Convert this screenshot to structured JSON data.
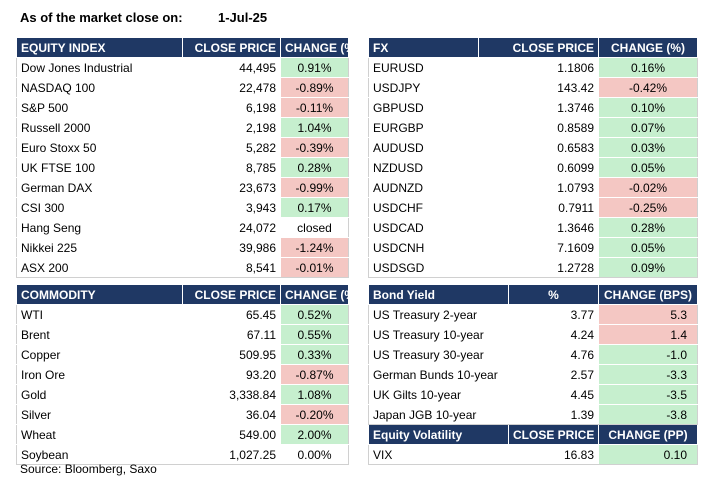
{
  "header": {
    "label": "As of the market close on:",
    "date": "1-Jul-25"
  },
  "equity": {
    "headers": [
      "EQUITY INDEX",
      "CLOSE PRICE",
      "CHANGE (%)"
    ],
    "rows": [
      {
        "name": "Dow Jones Industrial",
        "price": "44,495",
        "change": "0.91%",
        "dir": "pos"
      },
      {
        "name": "NASDAQ 100",
        "price": "22,478",
        "change": "-0.89%",
        "dir": "neg"
      },
      {
        "name": "S&P 500",
        "price": "6,198",
        "change": "-0.11%",
        "dir": "neg"
      },
      {
        "name": "Russell 2000",
        "price": "2,198",
        "change": "1.04%",
        "dir": "pos"
      },
      {
        "name": "Euro Stoxx 50",
        "price": "5,282",
        "change": "-0.39%",
        "dir": "neg"
      },
      {
        "name": "UK FTSE 100",
        "price": "8,785",
        "change": "0.28%",
        "dir": "pos"
      },
      {
        "name": "German DAX",
        "price": "23,673",
        "change": "-0.99%",
        "dir": "neg"
      },
      {
        "name": "CSI 300",
        "price": "3,943",
        "change": "0.17%",
        "dir": "pos"
      },
      {
        "name": "Hang Seng",
        "price": "24,072",
        "change": "closed",
        "dir": "neu"
      },
      {
        "name": "Nikkei 225",
        "price": "39,986",
        "change": "-1.24%",
        "dir": "neg"
      },
      {
        "name": "ASX 200",
        "price": "8,541",
        "change": "-0.01%",
        "dir": "neg"
      }
    ]
  },
  "fx": {
    "headers": [
      "FX",
      "CLOSE PRICE",
      "CHANGE (%)"
    ],
    "rows": [
      {
        "name": "EURUSD",
        "price": "1.1806",
        "change": "0.16%",
        "dir": "pos"
      },
      {
        "name": "USDJPY",
        "price": "143.42",
        "change": "-0.42%",
        "dir": "neg"
      },
      {
        "name": "GBPUSD",
        "price": "1.3746",
        "change": "0.10%",
        "dir": "pos"
      },
      {
        "name": "EURGBP",
        "price": "0.8589",
        "change": "0.07%",
        "dir": "pos"
      },
      {
        "name": "AUDUSD",
        "price": "0.6583",
        "change": "0.03%",
        "dir": "pos"
      },
      {
        "name": "NZDUSD",
        "price": "0.6099",
        "change": "0.05%",
        "dir": "pos"
      },
      {
        "name": "AUDNZD",
        "price": "1.0793",
        "change": "-0.02%",
        "dir": "neg"
      },
      {
        "name": "USDCHF",
        "price": "0.7911",
        "change": "-0.25%",
        "dir": "neg"
      },
      {
        "name": "USDCAD",
        "price": "1.3646",
        "change": "0.28%",
        "dir": "pos"
      },
      {
        "name": "USDCNH",
        "price": "7.1609",
        "change": "0.05%",
        "dir": "pos"
      },
      {
        "name": "USDSGD",
        "price": "1.2728",
        "change": "0.09%",
        "dir": "pos"
      }
    ]
  },
  "commodity": {
    "headers": [
      "COMMODITY",
      "CLOSE PRICE",
      "CHANGE (%)"
    ],
    "rows": [
      {
        "name": "WTI",
        "price": "65.45",
        "change": "0.52%",
        "dir": "pos"
      },
      {
        "name": "Brent",
        "price": "67.11",
        "change": "0.55%",
        "dir": "pos"
      },
      {
        "name": "Copper",
        "price": "509.95",
        "change": "0.33%",
        "dir": "pos"
      },
      {
        "name": "Iron Ore",
        "price": "93.20",
        "change": "-0.87%",
        "dir": "neg"
      },
      {
        "name": "Gold",
        "price": "3,338.84",
        "change": "1.08%",
        "dir": "pos"
      },
      {
        "name": "Silver",
        "price": "36.04",
        "change": "-0.20%",
        "dir": "neg"
      },
      {
        "name": "Wheat",
        "price": "549.00",
        "change": "2.00%",
        "dir": "pos"
      },
      {
        "name": "Soybean",
        "price": "1,027.25",
        "change": "0.00%",
        "dir": "neu"
      }
    ]
  },
  "bonds": {
    "headers": [
      "Bond Yield",
      "%",
      "CHANGE (BPS)"
    ],
    "rows": [
      {
        "name": "US Treasury 2-year",
        "price": "3.77",
        "change": "5.3",
        "dir": "neg"
      },
      {
        "name": "US Treasury 10-year",
        "price": "4.24",
        "change": "1.4",
        "dir": "neg"
      },
      {
        "name": "US Treasury 30-year",
        "price": "4.76",
        "change": "-1.0",
        "dir": "pos"
      },
      {
        "name": "German Bunds 10-year",
        "price": "2.57",
        "change": "-3.3",
        "dir": "pos"
      },
      {
        "name": "UK Gilts 10-year",
        "price": "4.45",
        "change": "-3.5",
        "dir": "pos"
      },
      {
        "name": "Japan JGB 10-year",
        "price": "1.39",
        "change": "-3.8",
        "dir": "pos"
      }
    ]
  },
  "volatility": {
    "headers": [
      "Equity Volatility",
      "CLOSE PRICE",
      "CHANGE (PP)"
    ],
    "rows": [
      {
        "name": "VIX",
        "price": "16.83",
        "change": "0.10",
        "dir": "pos"
      }
    ]
  },
  "source": "Source: Bloomberg, Saxo",
  "colors": {
    "header_bg": "#1f3864",
    "positive": "#c6efce",
    "negative": "#f4c7c3"
  }
}
